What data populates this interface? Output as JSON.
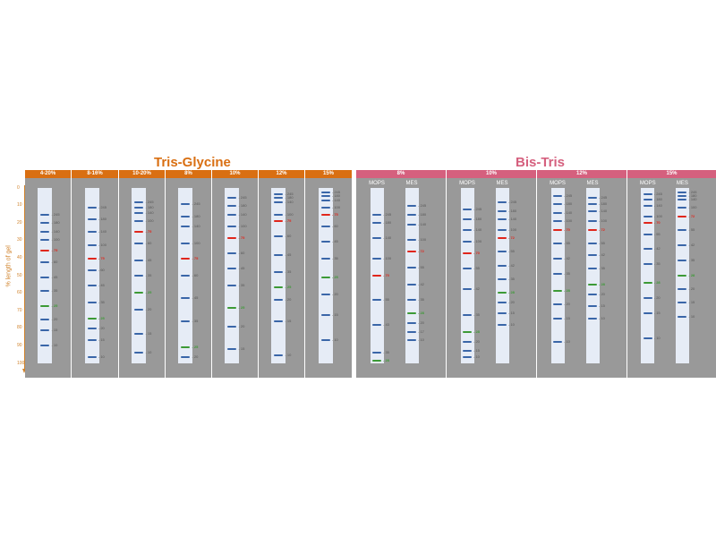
{
  "colors": {
    "tris_header": "#d96f12",
    "bistris_header": "#d5607e",
    "band_default": "#3a66a8",
    "band_red": "#e0261c",
    "band_green": "#3c9a36",
    "label_default": "#555555"
  },
  "y_axis": {
    "label": "% length of gel",
    "ticks": [
      "0",
      "10",
      "20",
      "30",
      "40",
      "50",
      "60",
      "70",
      "80",
      "90",
      "100"
    ]
  },
  "groups": [
    {
      "name": "Tris-Glycine",
      "color_key": "tris_header"
    },
    {
      "name": "Bis-Tris",
      "color_key": "bistris_header"
    }
  ],
  "panels": [
    {
      "group": "Tris-Glycine",
      "header": "4-20%",
      "lanes": [
        {
          "label": "",
          "bands": [
            {
              "pos": 14,
              "label": "245"
            },
            {
              "pos": 19,
              "label": "180"
            },
            {
              "pos": 24,
              "label": "140"
            },
            {
              "pos": 29,
              "label": "100"
            },
            {
              "pos": 35,
              "label": "75",
              "color": "red"
            },
            {
              "pos": 42,
              "label": "60"
            },
            {
              "pos": 51,
              "label": "45"
            },
            {
              "pos": 59,
              "label": "35"
            },
            {
              "pos": 68,
              "label": "25",
              "color": "green"
            },
            {
              "pos": 76,
              "label": "20"
            },
            {
              "pos": 82,
              "label": "15"
            },
            {
              "pos": 91,
              "label": "10"
            }
          ]
        }
      ]
    },
    {
      "group": "Tris-Glycine",
      "header": "8-16%",
      "lanes": [
        {
          "label": "",
          "bands": [
            {
              "pos": 10,
              "label": "245"
            },
            {
              "pos": 17,
              "label": "180"
            },
            {
              "pos": 24,
              "label": "140"
            },
            {
              "pos": 32,
              "label": "100"
            },
            {
              "pos": 40,
              "label": "75",
              "color": "red"
            },
            {
              "pos": 47,
              "label": "60"
            },
            {
              "pos": 56,
              "label": "45"
            },
            {
              "pos": 66,
              "label": "35"
            },
            {
              "pos": 75,
              "label": "25",
              "color": "green"
            },
            {
              "pos": 81,
              "label": "20"
            },
            {
              "pos": 88,
              "label": "15"
            },
            {
              "pos": 98,
              "label": "10"
            }
          ]
        }
      ]
    },
    {
      "group": "Tris-Glycine",
      "header": "10-20%",
      "lanes": [
        {
          "label": "",
          "bands": [
            {
              "pos": 7,
              "label": "245"
            },
            {
              "pos": 10,
              "label": "180"
            },
            {
              "pos": 13,
              "label": "140"
            },
            {
              "pos": 18,
              "label": "100"
            },
            {
              "pos": 24,
              "label": "75",
              "color": "red"
            },
            {
              "pos": 31,
              "label": "60"
            },
            {
              "pos": 41,
              "label": "45"
            },
            {
              "pos": 50,
              "label": "35"
            },
            {
              "pos": 60,
              "label": "25",
              "color": "green"
            },
            {
              "pos": 70,
              "label": "20"
            },
            {
              "pos": 84,
              "label": "15"
            },
            {
              "pos": 95,
              "label": "10"
            }
          ]
        }
      ]
    },
    {
      "group": "Tris-Glycine",
      "header": "8%",
      "lanes": [
        {
          "label": "",
          "bands": [
            {
              "pos": 8,
              "label": "245"
            },
            {
              "pos": 15,
              "label": "180"
            },
            {
              "pos": 21,
              "label": "140"
            },
            {
              "pos": 31,
              "label": "100"
            },
            {
              "pos": 40,
              "label": "75",
              "color": "red"
            },
            {
              "pos": 50,
              "label": "60"
            },
            {
              "pos": 63,
              "label": "45"
            },
            {
              "pos": 77,
              "label": "35"
            },
            {
              "pos": 92,
              "label": "25",
              "color": "green"
            },
            {
              "pos": 98,
              "label": "20"
            }
          ]
        }
      ]
    },
    {
      "group": "Tris-Glycine",
      "header": "10%",
      "lanes": [
        {
          "label": "",
          "bands": [
            {
              "pos": 4,
              "label": "245"
            },
            {
              "pos": 9,
              "label": "180"
            },
            {
              "pos": 14,
              "label": "140"
            },
            {
              "pos": 21,
              "label": "100"
            },
            {
              "pos": 28,
              "label": "75",
              "color": "red"
            },
            {
              "pos": 37,
              "label": "60"
            },
            {
              "pos": 46,
              "label": "45"
            },
            {
              "pos": 56,
              "label": "35"
            },
            {
              "pos": 69,
              "label": "25",
              "color": "green"
            },
            {
              "pos": 80,
              "label": "20"
            },
            {
              "pos": 93,
              "label": "15"
            }
          ]
        }
      ]
    },
    {
      "group": "Tris-Glycine",
      "header": "12%",
      "lanes": [
        {
          "label": "",
          "bands": [
            {
              "pos": 2,
              "label": "245"
            },
            {
              "pos": 4,
              "label": "180"
            },
            {
              "pos": 7,
              "label": "140"
            },
            {
              "pos": 14,
              "label": "100"
            },
            {
              "pos": 18,
              "label": "75",
              "color": "red"
            },
            {
              "pos": 27,
              "label": "60"
            },
            {
              "pos": 38,
              "label": "45"
            },
            {
              "pos": 48,
              "label": "35"
            },
            {
              "pos": 57,
              "label": "25",
              "color": "green"
            },
            {
              "pos": 64,
              "label": "20"
            },
            {
              "pos": 77,
              "label": "15"
            },
            {
              "pos": 97,
              "label": "10"
            }
          ]
        }
      ]
    },
    {
      "group": "Tris-Glycine",
      "header": "15%",
      "lanes": [
        {
          "label": "",
          "bands": [
            {
              "pos": 1,
              "label": "245"
            },
            {
              "pos": 3,
              "label": "180"
            },
            {
              "pos": 6,
              "label": "140"
            },
            {
              "pos": 10,
              "label": "100"
            },
            {
              "pos": 14,
              "label": "75",
              "color": "red"
            },
            {
              "pos": 21,
              "label": "60"
            },
            {
              "pos": 30,
              "label": "45"
            },
            {
              "pos": 40,
              "label": "35"
            },
            {
              "pos": 51,
              "label": "25",
              "color": "green"
            },
            {
              "pos": 61,
              "label": "20"
            },
            {
              "pos": 73,
              "label": "15"
            },
            {
              "pos": 88,
              "label": "10"
            }
          ]
        }
      ]
    },
    {
      "group": "Bis-Tris",
      "header": "8%",
      "lanes": [
        {
          "label": "MOPS",
          "bands": [
            {
              "pos": 14,
              "label": "245"
            },
            {
              "pos": 19,
              "label": "180"
            },
            {
              "pos": 28,
              "label": "140"
            },
            {
              "pos": 40,
              "label": "100"
            },
            {
              "pos": 50,
              "label": "70",
              "color": "red"
            },
            {
              "pos": 64,
              "label": "55"
            },
            {
              "pos": 79,
              "label": "43"
            },
            {
              "pos": 95,
              "label": "35"
            },
            {
              "pos": 100,
              "label": "28",
              "color": "green"
            }
          ]
        },
        {
          "label": "MES",
          "bands": [
            {
              "pos": 9,
              "label": "245"
            },
            {
              "pos": 14,
              "label": "180"
            },
            {
              "pos": 20,
              "label": "140"
            },
            {
              "pos": 29,
              "label": "100"
            },
            {
              "pos": 36,
              "label": "72",
              "color": "red"
            },
            {
              "pos": 45,
              "label": "55"
            },
            {
              "pos": 55,
              "label": "42"
            },
            {
              "pos": 64,
              "label": "35"
            },
            {
              "pos": 72,
              "label": "28",
              "color": "green"
            },
            {
              "pos": 78,
              "label": "20"
            },
            {
              "pos": 83,
              "label": "17"
            },
            {
              "pos": 88,
              "label": "10"
            }
          ]
        }
      ]
    },
    {
      "group": "Bis-Tris",
      "header": "10%",
      "lanes": [
        {
          "label": "MOPS",
          "bands": [
            {
              "pos": 11,
              "label": "245"
            },
            {
              "pos": 17,
              "label": "180"
            },
            {
              "pos": 23,
              "label": "140"
            },
            {
              "pos": 30,
              "label": "100"
            },
            {
              "pos": 37,
              "label": "70",
              "color": "red"
            },
            {
              "pos": 46,
              "label": "55"
            },
            {
              "pos": 58,
              "label": "42"
            },
            {
              "pos": 73,
              "label": "35"
            },
            {
              "pos": 83,
              "label": "28",
              "color": "green"
            },
            {
              "pos": 89,
              "label": "20"
            },
            {
              "pos": 94,
              "label": "15"
            },
            {
              "pos": 98,
              "label": "10"
            }
          ]
        },
        {
          "label": "MES",
          "bands": [
            {
              "pos": 7,
              "label": "245"
            },
            {
              "pos": 12,
              "label": "180"
            },
            {
              "pos": 17,
              "label": "140"
            },
            {
              "pos": 23,
              "label": "100"
            },
            {
              "pos": 28,
              "label": "72",
              "color": "red"
            },
            {
              "pos": 36,
              "label": "55"
            },
            {
              "pos": 44,
              "label": "42"
            },
            {
              "pos": 52,
              "label": "35"
            },
            {
              "pos": 60,
              "label": "28",
              "color": "green"
            },
            {
              "pos": 66,
              "label": "20"
            },
            {
              "pos": 72,
              "label": "15"
            },
            {
              "pos": 79,
              "label": "10"
            }
          ]
        }
      ]
    },
    {
      "group": "Bis-Tris",
      "header": "12%",
      "lanes": [
        {
          "label": "MOPS",
          "bands": [
            {
              "pos": 3,
              "label": "245"
            },
            {
              "pos": 8,
              "label": "180"
            },
            {
              "pos": 13,
              "label": "140"
            },
            {
              "pos": 18,
              "label": "100"
            },
            {
              "pos": 23,
              "label": "70",
              "color": "red"
            },
            {
              "pos": 31,
              "label": "55"
            },
            {
              "pos": 40,
              "label": "42"
            },
            {
              "pos": 49,
              "label": "35"
            },
            {
              "pos": 59,
              "label": "28",
              "color": "green"
            },
            {
              "pos": 67,
              "label": "20"
            },
            {
              "pos": 75,
              "label": "15"
            },
            {
              "pos": 89,
              "label": "10"
            }
          ]
        },
        {
          "label": "MES",
          "bands": [
            {
              "pos": 4,
              "label": "245"
            },
            {
              "pos": 8,
              "label": "180"
            },
            {
              "pos": 12,
              "label": "140"
            },
            {
              "pos": 18,
              "label": "100"
            },
            {
              "pos": 23,
              "label": "72",
              "color": "red"
            },
            {
              "pos": 31,
              "label": "55"
            },
            {
              "pos": 38,
              "label": "42"
            },
            {
              "pos": 46,
              "label": "35"
            },
            {
              "pos": 55,
              "label": "28",
              "color": "green"
            },
            {
              "pos": 61,
              "label": "20"
            },
            {
              "pos": 68,
              "label": "15"
            },
            {
              "pos": 75,
              "label": "10"
            }
          ]
        }
      ]
    },
    {
      "group": "Bis-Tris",
      "header": "15%",
      "lanes": [
        {
          "label": "MOPS",
          "bands": [
            {
              "pos": 2,
              "label": "245"
            },
            {
              "pos": 5,
              "label": "180"
            },
            {
              "pos": 9,
              "label": "140"
            },
            {
              "pos": 15,
              "label": "100"
            },
            {
              "pos": 19,
              "label": "70",
              "color": "red"
            },
            {
              "pos": 26,
              "label": "55"
            },
            {
              "pos": 34,
              "label": "42"
            },
            {
              "pos": 43,
              "label": "35"
            },
            {
              "pos": 54,
              "label": "28",
              "color": "green"
            },
            {
              "pos": 63,
              "label": "20"
            },
            {
              "pos": 72,
              "label": "15"
            },
            {
              "pos": 87,
              "label": "10"
            }
          ]
        },
        {
          "label": "MES",
          "bands": [
            {
              "pos": 1,
              "label": "245"
            },
            {
              "pos": 3,
              "label": "180"
            },
            {
              "pos": 5,
              "label": "140"
            },
            {
              "pos": 10,
              "label": "100"
            },
            {
              "pos": 15,
              "label": "72",
              "color": "red"
            },
            {
              "pos": 23,
              "label": "55"
            },
            {
              "pos": 32,
              "label": "42"
            },
            {
              "pos": 41,
              "label": "35"
            },
            {
              "pos": 50,
              "label": "28",
              "color": "green"
            },
            {
              "pos": 58,
              "label": "20"
            },
            {
              "pos": 66,
              "label": "15"
            },
            {
              "pos": 74,
              "label": "10"
            }
          ]
        }
      ]
    }
  ]
}
